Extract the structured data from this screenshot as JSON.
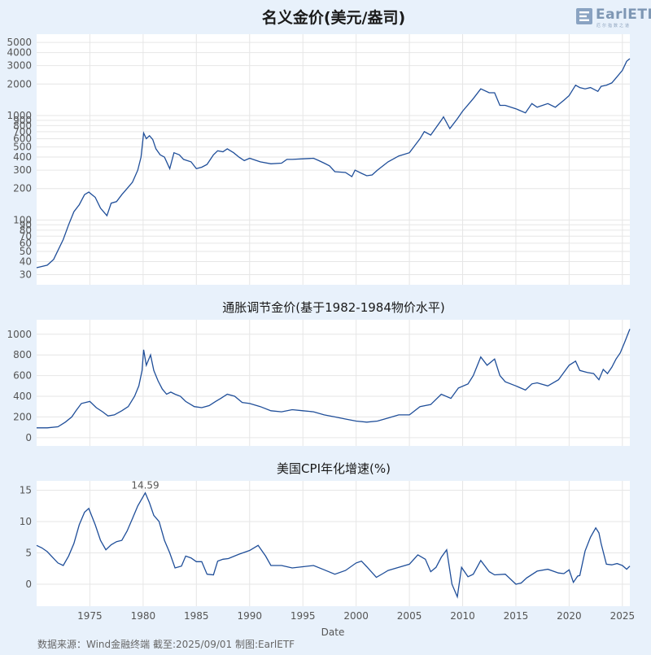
{
  "logo": {
    "text": "EarlETF",
    "subtext": "厄尔指数之道",
    "accent": "#7e97b4"
  },
  "source_note": "数据来源：Wind金融终端 截至:2025/09/01 制图:EarlETF",
  "colors": {
    "line": "#1f4e99",
    "background": "#e8f1fb",
    "plot_bg": "#ffffff",
    "grid": "#e6e6e6"
  },
  "chart_data": [
    {
      "id": "nominal",
      "type": "line",
      "title": "名义金价(美元/盎司)",
      "xlabel": "",
      "ylabel": "",
      "yscale": "log",
      "xlim": [
        1970.0,
        2025.7
      ],
      "ylim": [
        24,
        6000
      ],
      "yticks": [
        30,
        40,
        50,
        60,
        70,
        80,
        90,
        100,
        200,
        300,
        400,
        500,
        600,
        700,
        800,
        900,
        1000,
        2000,
        3000,
        4000,
        5000
      ],
      "grid": true,
      "series": [
        {
          "x": [
            1970.0,
            1971.0,
            1971.6,
            1972.5,
            1973.0,
            1973.5,
            1974.0,
            1974.5,
            1974.9,
            1975.5,
            1976.0,
            1976.6,
            1977.0,
            1977.5,
            1978.0,
            1978.5,
            1979.0,
            1979.5,
            1979.8,
            1980.05,
            1980.3,
            1980.6,
            1980.9,
            1981.2,
            1981.6,
            1982.0,
            1982.5,
            1982.9,
            1983.4,
            1983.8,
            1984.5,
            1985.0,
            1985.5,
            1986.0,
            1986.6,
            1987.0,
            1987.5,
            1987.9,
            1988.5,
            1989.0,
            1989.5,
            1990.0,
            1991.0,
            1992.0,
            1993.0,
            1993.5,
            1994.0,
            1995.0,
            1996.0,
            1996.5,
            1997.0,
            1997.5,
            1998.0,
            1999.0,
            1999.6,
            1999.9,
            2000.5,
            2001.0,
            2001.5,
            2002.0,
            2003.0,
            2004.0,
            2005.0,
            2006.0,
            2006.4,
            2007.0,
            2008.0,
            2008.2,
            2008.8,
            2009.5,
            2010.0,
            2011.0,
            2011.7,
            2012.5,
            2013.0,
            2013.5,
            2014.0,
            2015.0,
            2015.9,
            2016.5,
            2017.0,
            2018.0,
            2018.7,
            2019.5,
            2020.0,
            2020.6,
            2021.0,
            2021.5,
            2022.0,
            2022.7,
            2023.0,
            2023.5,
            2024.0,
            2024.5,
            2025.0,
            2025.4,
            2025.7
          ],
          "y": [
            35,
            37,
            42,
            65,
            90,
            120,
            140,
            175,
            185,
            165,
            130,
            110,
            145,
            150,
            175,
            200,
            230,
            300,
            400,
            680,
            600,
            640,
            590,
            480,
            420,
            400,
            310,
            440,
            420,
            380,
            360,
            310,
            320,
            340,
            420,
            460,
            450,
            480,
            440,
            400,
            370,
            390,
            360,
            345,
            350,
            380,
            380,
            385,
            390,
            370,
            350,
            330,
            290,
            285,
            260,
            300,
            280,
            265,
            270,
            300,
            360,
            410,
            440,
            600,
            700,
            650,
            900,
            970,
            750,
            930,
            1100,
            1450,
            1800,
            1650,
            1650,
            1250,
            1250,
            1160,
            1060,
            1300,
            1200,
            1300,
            1200,
            1400,
            1550,
            1950,
            1850,
            1800,
            1850,
            1700,
            1900,
            1950,
            2050,
            2350,
            2700,
            3300,
            3500
          ]
        }
      ]
    },
    {
      "id": "real",
      "type": "line",
      "title": "通胀调节金价(基于1982-1984物价水平)",
      "xlabel": "",
      "ylabel": "",
      "yscale": "linear",
      "xlim": [
        1970.0,
        2025.7
      ],
      "ylim": [
        -80,
        1140
      ],
      "yticks": [
        0,
        200,
        400,
        600,
        800,
        1000
      ],
      "grid": true,
      "series": [
        {
          "x": [
            1970.0,
            1971.0,
            1972.0,
            1972.7,
            1973.3,
            1973.7,
            1974.2,
            1974.6,
            1975.0,
            1975.6,
            1976.2,
            1976.7,
            1977.3,
            1978.0,
            1978.6,
            1979.2,
            1979.6,
            1979.9,
            1980.05,
            1980.3,
            1980.7,
            1981.0,
            1981.4,
            1981.8,
            1982.2,
            1982.6,
            1983.0,
            1983.5,
            1984.0,
            1984.8,
            1985.5,
            1986.2,
            1986.8,
            1987.3,
            1987.9,
            1988.6,
            1989.3,
            1990.0,
            1991.0,
            1992.0,
            1993.0,
            1994.0,
            1995.0,
            1996.0,
            1997.0,
            1998.0,
            1999.0,
            2000.0,
            2001.0,
            2002.0,
            2003.0,
            2004.0,
            2005.0,
            2006.0,
            2007.0,
            2008.0,
            2008.9,
            2009.6,
            2010.5,
            2011.0,
            2011.7,
            2012.3,
            2013.0,
            2013.5,
            2014.0,
            2015.0,
            2015.9,
            2016.5,
            2017.0,
            2018.0,
            2019.0,
            2020.0,
            2020.6,
            2021.0,
            2021.7,
            2022.3,
            2022.8,
            2023.2,
            2023.6,
            2024.0,
            2024.4,
            2024.8,
            2025.2,
            2025.7
          ],
          "y": [
            95,
            95,
            105,
            150,
            200,
            260,
            330,
            340,
            350,
            290,
            250,
            210,
            220,
            260,
            300,
            400,
            500,
            650,
            850,
            700,
            800,
            650,
            550,
            470,
            420,
            440,
            420,
            400,
            350,
            300,
            290,
            310,
            350,
            380,
            420,
            400,
            340,
            330,
            300,
            260,
            250,
            270,
            260,
            250,
            220,
            200,
            180,
            160,
            150,
            160,
            190,
            220,
            220,
            300,
            320,
            420,
            380,
            480,
            520,
            600,
            780,
            700,
            760,
            600,
            540,
            500,
            460,
            520,
            530,
            500,
            560,
            700,
            740,
            650,
            630,
            620,
            560,
            660,
            620,
            680,
            760,
            820,
            920,
            1050
          ]
        }
      ]
    },
    {
      "id": "cpi",
      "type": "line",
      "title": "美国CPI年化增速(%)",
      "xlabel": "Date",
      "ylabel": "",
      "yscale": "linear",
      "xlim": [
        1970.0,
        2025.7
      ],
      "ylim": [
        -3.5,
        16.5
      ],
      "yticks": [
        0,
        5,
        10,
        15
      ],
      "xticks": [
        1975,
        1980,
        1985,
        1990,
        1995,
        2000,
        2005,
        2010,
        2015,
        2020,
        2025
      ],
      "grid": true,
      "annotation": {
        "text": "14.59",
        "x": 1980.2,
        "y": 14.59
      },
      "series": [
        {
          "x": [
            1970.0,
            1970.5,
            1971.0,
            1971.5,
            1972.0,
            1972.5,
            1973.0,
            1973.5,
            1974.0,
            1974.5,
            1974.9,
            1975.5,
            1976.0,
            1976.5,
            1977.0,
            1977.5,
            1978.0,
            1978.5,
            1979.0,
            1979.5,
            1980.0,
            1980.2,
            1980.6,
            1981.0,
            1981.5,
            1982.0,
            1982.5,
            1983.0,
            1983.6,
            1984.0,
            1984.5,
            1985.0,
            1985.5,
            1986.0,
            1986.6,
            1987.0,
            1987.5,
            1988.0,
            1989.0,
            1990.0,
            1990.8,
            1991.5,
            1992.0,
            1993.0,
            1994.0,
            1995.0,
            1996.0,
            1997.0,
            1998.0,
            1999.0,
            2000.0,
            2000.5,
            2001.0,
            2001.9,
            2002.5,
            2003.0,
            2004.0,
            2005.0,
            2005.8,
            2006.5,
            2007.0,
            2007.5,
            2008.0,
            2008.5,
            2009.0,
            2009.5,
            2009.9,
            2010.5,
            2011.0,
            2011.7,
            2012.5,
            2013.0,
            2014.0,
            2015.0,
            2015.5,
            2016.0,
            2017.0,
            2018.0,
            2019.0,
            2019.5,
            2020.0,
            2020.4,
            2020.8,
            2021.0,
            2021.5,
            2022.0,
            2022.5,
            2022.8,
            2023.0,
            2023.5,
            2024.0,
            2024.5,
            2025.0,
            2025.4,
            2025.7
          ],
          "y": [
            6.2,
            5.8,
            5.2,
            4.3,
            3.4,
            3.0,
            4.5,
            6.5,
            9.5,
            11.5,
            12.1,
            9.5,
            7.0,
            5.5,
            6.3,
            6.8,
            7.0,
            8.5,
            10.5,
            12.5,
            14.0,
            14.59,
            13.0,
            11.0,
            10.0,
            7.0,
            5.0,
            2.6,
            2.9,
            4.5,
            4.2,
            3.6,
            3.6,
            1.6,
            1.5,
            3.7,
            4.0,
            4.1,
            4.8,
            5.4,
            6.2,
            4.5,
            3.0,
            3.0,
            2.6,
            2.8,
            3.0,
            2.3,
            1.6,
            2.2,
            3.4,
            3.7,
            2.8,
            1.1,
            1.7,
            2.2,
            2.7,
            3.2,
            4.7,
            4.0,
            2.0,
            2.7,
            4.3,
            5.5,
            0.0,
            -2.0,
            2.7,
            1.2,
            1.6,
            3.8,
            2.0,
            1.5,
            1.6,
            0.0,
            0.2,
            1.0,
            2.1,
            2.4,
            1.8,
            1.7,
            2.3,
            0.3,
            1.3,
            1.4,
            5.3,
            7.5,
            9.0,
            8.2,
            6.5,
            3.2,
            3.1,
            3.3,
            3.0,
            2.4,
            2.9
          ]
        }
      ]
    }
  ]
}
